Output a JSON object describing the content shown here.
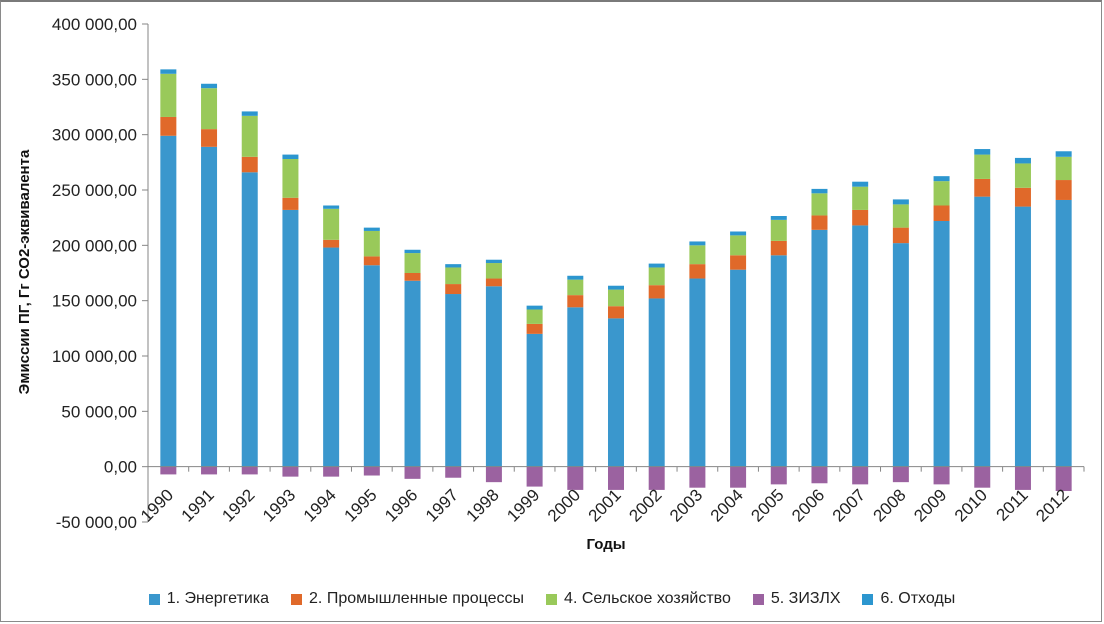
{
  "chart_data": {
    "type": "bar",
    "stacked": true,
    "title": "",
    "xlabel": "Годы",
    "ylabel": "Эмиссии ПГ, Гг СО2-эквивалента",
    "ylim": [
      -50000,
      400000
    ],
    "yticks": [
      -50000,
      0,
      50000,
      100000,
      150000,
      200000,
      250000,
      300000,
      350000,
      400000
    ],
    "ytick_labels": [
      "-50 000,00",
      "0,00",
      "50 000,00",
      "100 000,00",
      "150 000,00",
      "200 000,00",
      "250 000,00",
      "300 000,00",
      "350 000,00",
      "400 000,00"
    ],
    "grid": false,
    "legend_position": "bottom",
    "categories": [
      "1990",
      "1991",
      "1992",
      "1993",
      "1994",
      "1995",
      "1996",
      "1997",
      "1998",
      "1999",
      "2000",
      "2001",
      "2002",
      "2003",
      "2004",
      "2005",
      "2006",
      "2007",
      "2008",
      "2009",
      "2010",
      "2011",
      "2012"
    ],
    "series": [
      {
        "name": "1.  Энергетика",
        "color": "#3a97cd",
        "values": [
          299000,
          289000,
          266000,
          232000,
          198000,
          182000,
          168000,
          156000,
          163000,
          120000,
          144000,
          134000,
          152000,
          170000,
          178000,
          191000,
          214000,
          218000,
          202000,
          222000,
          244000,
          235000,
          241000
        ]
      },
      {
        "name": "2.  Промышленные процессы",
        "color": "#e0692a",
        "values": [
          17000,
          16000,
          14000,
          11000,
          7000,
          8000,
          7000,
          9000,
          7000,
          9000,
          11000,
          11000,
          12000,
          13000,
          13000,
          13000,
          13000,
          14000,
          14000,
          14000,
          16000,
          17000,
          18000
        ]
      },
      {
        "name": "4.  Сельское хозяйство",
        "color": "#99c95a",
        "values": [
          39000,
          37000,
          37000,
          35000,
          28000,
          23000,
          18000,
          15000,
          14000,
          13000,
          14000,
          15000,
          16000,
          17000,
          18000,
          19000,
          20000,
          21000,
          21000,
          22000,
          22000,
          22000,
          21000
        ]
      },
      {
        "name": "5.  ЗИЗЛХ",
        "color": "#9b62a0",
        "values": [
          -7000,
          -7000,
          -7000,
          -9000,
          -9000,
          -8000,
          -11000,
          -10000,
          -14000,
          -18000,
          -21000,
          -21000,
          -21000,
          -19000,
          -19000,
          -16000,
          -15000,
          -16000,
          -14000,
          -16000,
          -19000,
          -21000,
          -22000
        ]
      },
      {
        "name": "6.  Отходы",
        "color": "#2c96cf",
        "values": [
          4000,
          4000,
          4000,
          4000,
          3000,
          3000,
          3000,
          3000,
          3000,
          3500,
          3500,
          3500,
          3500,
          3500,
          3500,
          3500,
          4000,
          4500,
          4500,
          4500,
          5000,
          5000,
          5000
        ]
      }
    ]
  }
}
